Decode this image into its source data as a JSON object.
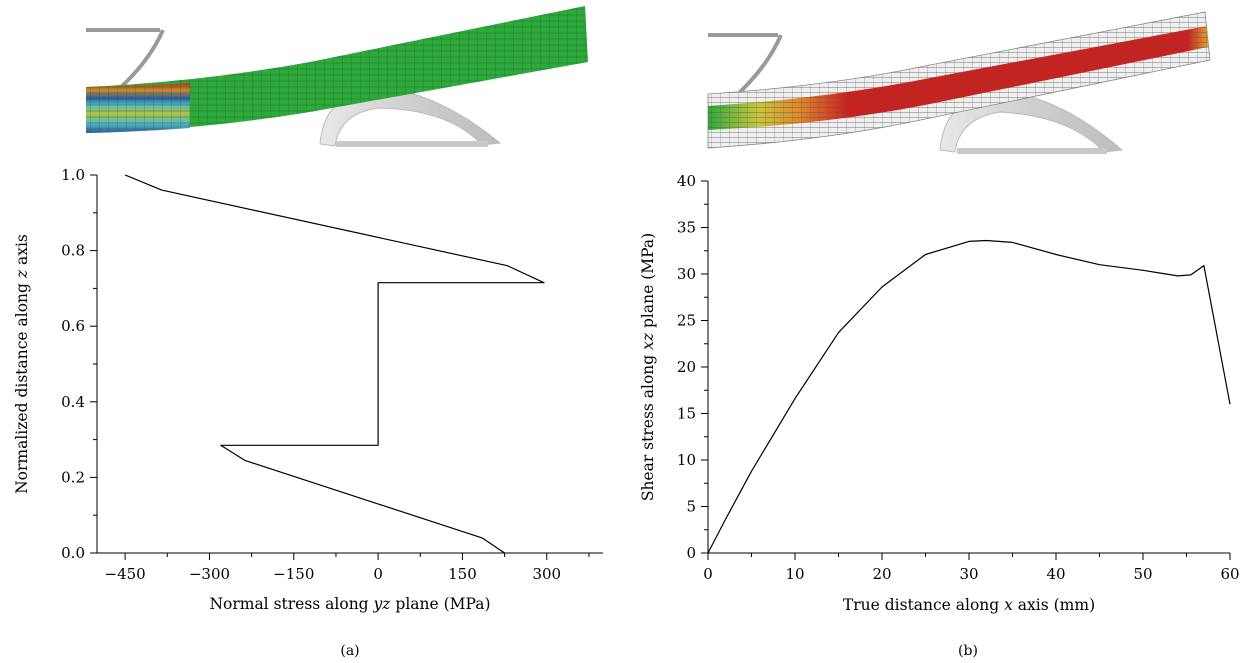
{
  "chart_data": [
    {
      "type": "line",
      "caption": "(a)",
      "xlabel_parts": [
        "Normal stress along ",
        "yz",
        " plane (MPa)"
      ],
      "ylabel_parts": [
        "Normalized distance along ",
        "z",
        " axis"
      ],
      "xlim": [
        -500,
        400
      ],
      "ylim": [
        0,
        1.0
      ],
      "xticks": [
        -450,
        -300,
        -150,
        0,
        150,
        300
      ],
      "xtick_labels": [
        "−450",
        "−300",
        "−150",
        "0",
        "150",
        "300"
      ],
      "yticks": [
        0,
        0.2,
        0.4,
        0.6,
        0.8,
        1.0
      ],
      "ytick_labels": [
        "0.0",
        "0.2",
        "0.4",
        "0.6",
        "0.8",
        "1.0"
      ],
      "series": [
        {
          "x": [
            -450,
            -385,
            230,
            295,
            0,
            0,
            -280,
            -237,
            185,
            225
          ],
          "y": [
            1.0,
            0.96,
            0.76,
            0.715,
            0.715,
            0.285,
            0.285,
            0.245,
            0.04,
            0.0
          ]
        }
      ]
    },
    {
      "type": "line",
      "caption": "(b)",
      "xlabel_parts": [
        "True distance along ",
        "x",
        " axis (mm)"
      ],
      "ylabel_parts": [
        "Shear stress along ",
        "xz",
        " plane (MPa)"
      ],
      "xlim": [
        0,
        60
      ],
      "ylim": [
        0,
        40
      ],
      "xticks": [
        0,
        10,
        20,
        30,
        40,
        50,
        60
      ],
      "xtick_labels": [
        "0",
        "10",
        "20",
        "30",
        "40",
        "50",
        "60"
      ],
      "yticks": [
        0,
        5,
        10,
        15,
        20,
        25,
        30,
        35,
        40
      ],
      "ytick_labels": [
        "0",
        "5",
        "10",
        "15",
        "20",
        "25",
        "30",
        "35",
        "40"
      ],
      "series": [
        {
          "x": [
            0,
            2,
            5,
            10,
            15,
            20,
            25,
            30,
            32,
            35,
            40,
            45,
            50,
            52,
            54,
            55.5,
            57,
            60
          ],
          "y": [
            0,
            3.6,
            8.8,
            16.6,
            23.7,
            28.6,
            32.1,
            33.5,
            33.6,
            33.4,
            32.1,
            31.0,
            30.4,
            30.1,
            29.8,
            29.9,
            30.9,
            16.0
          ]
        }
      ]
    }
  ],
  "colors": {
    "beam_green": "#2eaa3c",
    "beam_red": "#cf1f1c",
    "beam_yellow": "#c9c73a",
    "beam_orange": "#e08a2a",
    "beam_blue": "#2f4fb5",
    "support_gray": "#d8d8d8",
    "mesh_gray": "#9a9a9a"
  }
}
